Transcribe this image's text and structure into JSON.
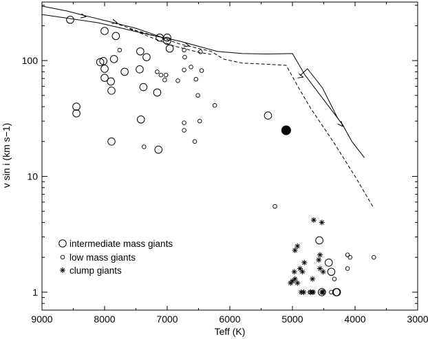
{
  "chart_data": {
    "type": "scatter",
    "xlabel": "Teff (K)",
    "ylabel": "v sin i (km s−1)",
    "xlim": [
      9000,
      3000
    ],
    "ylim": [
      0.7,
      320
    ],
    "yscale": "log",
    "grid": false,
    "legend_position": "bottom-left",
    "x_ticks": [
      9000,
      8000,
      7000,
      6000,
      5000,
      4000,
      3000
    ],
    "y_ticks": [
      1,
      10,
      100
    ],
    "x_tick_labels": [
      "9000",
      "8000",
      "7000",
      "6000",
      "5000",
      "4000",
      "3000"
    ],
    "y_tick_labels": [
      "1",
      "10",
      "100"
    ],
    "legend": [
      {
        "marker": "large-circle",
        "label": "intermediate mass giants"
      },
      {
        "marker": "small-circle",
        "label": "low mass giants"
      },
      {
        "marker": "asterisk",
        "label": "clump giants"
      }
    ],
    "series": [
      {
        "marker": "large-circle",
        "points": [
          [
            8550,
            225
          ],
          [
            8000,
            180
          ],
          [
            7820,
            163
          ],
          [
            7120,
            158
          ],
          [
            7000,
            158
          ],
          [
            7000,
            148
          ],
          [
            6960,
            127
          ],
          [
            7430,
            120
          ],
          [
            7330,
            107
          ],
          [
            8070,
            97
          ],
          [
            8020,
            99
          ],
          [
            8000,
            85
          ],
          [
            7850,
            103
          ],
          [
            7680,
            80
          ],
          [
            7440,
            84
          ],
          [
            8000,
            71
          ],
          [
            7900,
            66
          ],
          [
            7890,
            55
          ],
          [
            7380,
            59
          ],
          [
            7160,
            53
          ],
          [
            8450,
            40
          ],
          [
            8450,
            35
          ],
          [
            7420,
            31
          ],
          [
            7890,
            20
          ],
          [
            7140,
            17
          ],
          [
            5390,
            33.5
          ],
          [
            4570,
            2.8
          ],
          [
            4420,
            1.8
          ],
          [
            4380,
            1.5
          ],
          [
            4530,
            1
          ],
          [
            4300,
            1
          ],
          [
            4290,
            1
          ]
        ]
      },
      {
        "marker": "small-circle",
        "points": [
          [
            7760,
            123
          ],
          [
            6730,
            123
          ],
          [
            6470,
            119
          ],
          [
            7160,
            80
          ],
          [
            7020,
            75
          ],
          [
            7100,
            75
          ],
          [
            6730,
            83
          ],
          [
            6620,
            88
          ],
          [
            6450,
            82
          ],
          [
            6720,
            107
          ],
          [
            6830,
            67
          ],
          [
            6540,
            69
          ],
          [
            7040,
            68
          ],
          [
            6510,
            50
          ],
          [
            6240,
            41
          ],
          [
            6730,
            29
          ],
          [
            6480,
            30
          ],
          [
            6730,
            25
          ],
          [
            6560,
            20
          ],
          [
            7370,
            18
          ],
          [
            5280,
            5.5
          ],
          [
            4120,
            2.1
          ],
          [
            4080,
            2
          ],
          [
            3700,
            2
          ],
          [
            4120,
            1.6
          ],
          [
            4330,
            1.3
          ],
          [
            4720,
            1
          ],
          [
            4680,
            1
          ],
          [
            4500,
            1
          ],
          [
            4380,
            1
          ]
        ]
      },
      {
        "marker": "asterisk",
        "points": [
          [
            4660,
            4.2
          ],
          [
            4530,
            4
          ],
          [
            4920,
            2.5
          ],
          [
            4960,
            2.3
          ],
          [
            4560,
            2.1
          ],
          [
            4580,
            1.9
          ],
          [
            4810,
            1.8
          ],
          [
            4880,
            1.6
          ],
          [
            4560,
            1.6
          ],
          [
            4970,
            1.5
          ],
          [
            4840,
            1.5
          ],
          [
            4510,
            1.5
          ],
          [
            4680,
            1.3
          ],
          [
            5000,
            1.25
          ],
          [
            4960,
            1.3
          ],
          [
            4920,
            1.2
          ],
          [
            5030,
            1.2
          ],
          [
            4860,
            1
          ],
          [
            4820,
            1
          ],
          [
            4710,
            1
          ],
          [
            4670,
            1
          ],
          [
            4510,
            1
          ],
          [
            4530,
            1
          ]
        ]
      },
      {
        "marker": "filled-circle",
        "points": [
          [
            5100,
            25
          ]
        ]
      }
    ],
    "curves": [
      {
        "style": "solid",
        "points": [
          [
            9000,
            250
          ],
          [
            8100,
            212
          ],
          [
            7300,
            168
          ],
          [
            6800,
            147
          ],
          [
            6200,
            120
          ],
          [
            5800,
            115
          ],
          [
            5400,
            114
          ],
          [
            5000,
            115
          ],
          [
            4800,
            75
          ],
          [
            4200,
            28
          ],
          [
            4050,
            20
          ],
          [
            3850,
            14.5
          ]
        ]
      },
      {
        "style": "solid",
        "points": [
          [
            9000,
            295
          ],
          [
            8600,
            268
          ],
          [
            8300,
            243
          ],
          [
            7850,
            212
          ],
          [
            7500,
            190
          ],
          [
            7100,
            160
          ]
        ]
      },
      {
        "style": "solid",
        "points": [
          [
            4880,
            74
          ],
          [
            4760,
            85
          ],
          [
            4520,
            58
          ],
          [
            4280,
            32
          ],
          [
            4180,
            27
          ]
        ]
      },
      {
        "style": "dashed",
        "points": [
          [
            7850,
            212
          ],
          [
            7500,
            182
          ],
          [
            7100,
            158
          ],
          [
            6800,
            139
          ],
          [
            6300,
            120
          ],
          [
            6100,
            103
          ],
          [
            5800,
            95
          ],
          [
            5400,
            93
          ],
          [
            5100,
            91
          ],
          [
            4900,
            58
          ],
          [
            4700,
            38
          ],
          [
            4350,
            20
          ],
          [
            4000,
            10
          ],
          [
            3700,
            5.3
          ]
        ]
      },
      {
        "style": "dashed",
        "points": [
          [
            7600,
            188
          ],
          [
            7200,
            154
          ],
          [
            6900,
            134
          ],
          [
            6500,
            118
          ],
          [
            6300,
            113
          ]
        ]
      }
    ],
    "arrows": [
      {
        "style": "solid",
        "from": [
          7950,
          223
        ],
        "to": [
          7800,
          212
        ]
      },
      {
        "style": "solid",
        "from": [
          8500,
          251
        ],
        "to": [
          8300,
          239
        ]
      },
      {
        "style": "solid",
        "from": [
          4950,
          75
        ],
        "to": [
          4830,
          72
        ]
      },
      {
        "style": "solid",
        "from": [
          4290,
          31
        ],
        "to": [
          4200,
          27
        ]
      },
      {
        "style": "dashed",
        "from": [
          6780,
          140
        ],
        "to": [
          6650,
          134
        ]
      }
    ]
  }
}
